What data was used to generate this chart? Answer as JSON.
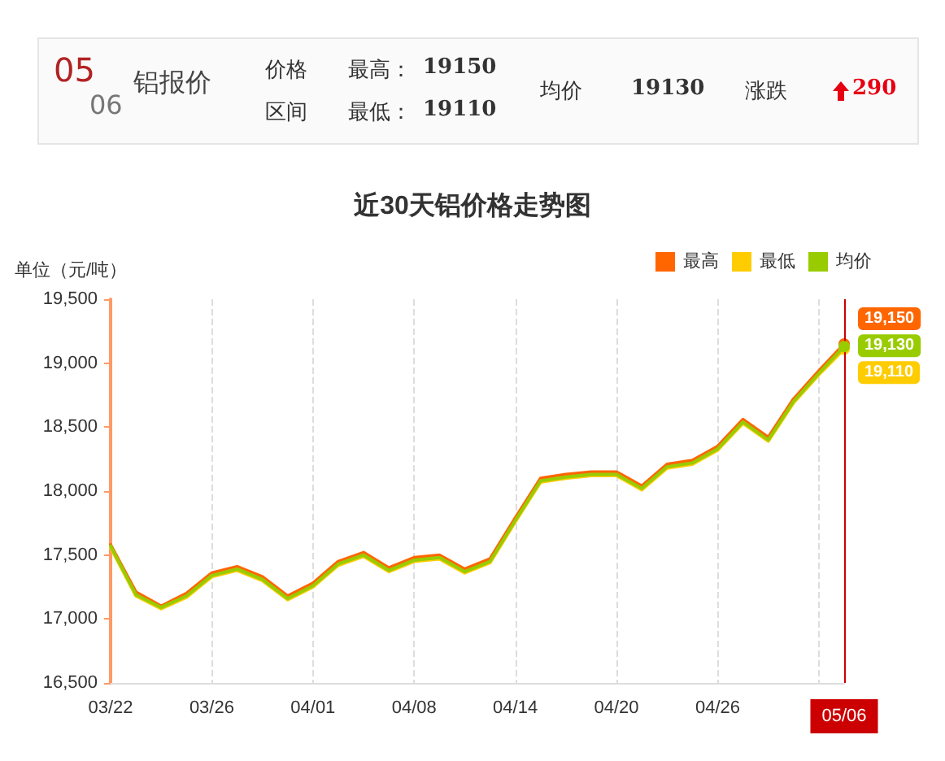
{
  "chart_data": {
    "type": "line",
    "title": "近30天铝价格走势图",
    "ylabel": "单位（元/吨）",
    "annotations": [
      "05",
      "06",
      "铝报价",
      "价格",
      "区间",
      "最高：",
      "19150",
      "最低：",
      "19110",
      "均价",
      "19130",
      "涨跌",
      "290"
    ],
    "categories": [
      "03/22",
      null,
      null,
      null,
      "03/26",
      null,
      null,
      null,
      "04/01",
      null,
      null,
      null,
      "04/08",
      null,
      null,
      null,
      "04/14",
      null,
      null,
      null,
      "04/20",
      null,
      null,
      null,
      "04/26",
      null,
      null,
      null,
      null,
      "05/06"
    ],
    "series": [
      {
        "name": "最高",
        "color": "#ff6600",
        "values": [
          17580,
          17210,
          17100,
          17200,
          17360,
          17410,
          17330,
          17180,
          17280,
          17450,
          17520,
          17400,
          17480,
          17500,
          17390,
          17470,
          17790,
          18100,
          18130,
          18150,
          18150,
          18040,
          18210,
          18240,
          18350,
          18560,
          18420,
          18720,
          18940,
          19150
        ],
        "value_labels": [
          null,
          null,
          null,
          null,
          null,
          null,
          null,
          null,
          null,
          null,
          null,
          null,
          null,
          null,
          null,
          null,
          null,
          null,
          null,
          null,
          null,
          null,
          null,
          null,
          null,
          null,
          null,
          null,
          null,
          "19,150"
        ]
      },
      {
        "name": "最低",
        "color": "#ffcc00",
        "values": [
          17560,
          17180,
          17080,
          17170,
          17330,
          17380,
          17300,
          17150,
          17250,
          17420,
          17490,
          17370,
          17450,
          17470,
          17360,
          17440,
          17760,
          18070,
          18100,
          18120,
          18120,
          18010,
          18180,
          18210,
          18320,
          18530,
          18390,
          18690,
          18910,
          19110
        ],
        "value_labels": [
          null,
          null,
          null,
          null,
          null,
          null,
          null,
          null,
          null,
          null,
          null,
          null,
          null,
          null,
          null,
          null,
          null,
          null,
          null,
          null,
          null,
          null,
          null,
          null,
          null,
          null,
          null,
          null,
          null,
          "19,110"
        ]
      },
      {
        "name": "均价",
        "color": "#99cc00",
        "values": [
          17570,
          17190,
          17090,
          17180,
          17340,
          17390,
          17310,
          17160,
          17260,
          17430,
          17500,
          17380,
          17460,
          17480,
          17370,
          17450,
          17770,
          18080,
          18110,
          18130,
          18130,
          18020,
          18190,
          18220,
          18330,
          18540,
          18400,
          18700,
          18920,
          19130
        ],
        "value_labels": [
          null,
          null,
          null,
          null,
          null,
          null,
          null,
          null,
          null,
          null,
          null,
          null,
          null,
          null,
          null,
          null,
          null,
          null,
          null,
          null,
          null,
          null,
          null,
          null,
          null,
          null,
          null,
          null,
          null,
          "19,130"
        ]
      }
    ],
    "ylim": [
      16500,
      19500
    ],
    "yticks": [
      {
        "value": 16500,
        "label": "16,500"
      },
      {
        "value": 17000,
        "label": "17,000"
      },
      {
        "value": 17500,
        "label": "17,500"
      },
      {
        "value": 18000,
        "label": "18,000"
      },
      {
        "value": 18500,
        "label": "18,500"
      },
      {
        "value": 19000,
        "label": "19,000"
      },
      {
        "value": 19500,
        "label": "19,500"
      }
    ],
    "ref_lines": [
      {
        "axis": "x",
        "value": "05/06",
        "color": "#cc0000"
      }
    ],
    "grid": "x",
    "legend": "top right",
    "marker": "none",
    "line_style": "solid"
  }
}
